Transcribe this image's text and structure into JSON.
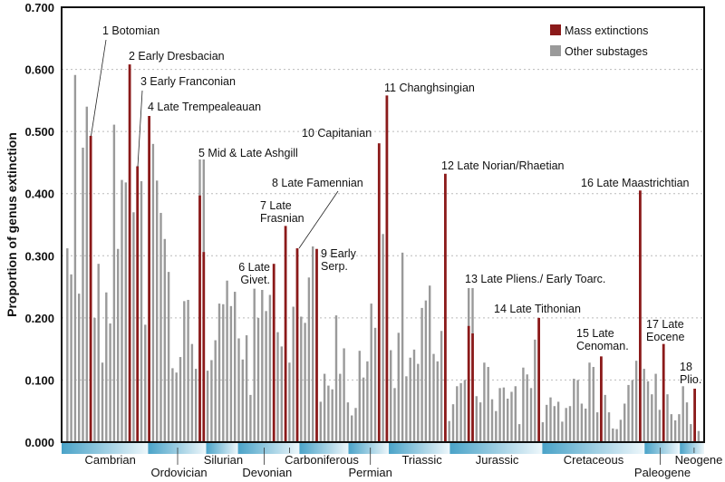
{
  "chart_data": {
    "type": "bar",
    "title": "",
    "xlabel": "",
    "ylabel": "Proportion of genus extinction",
    "ylim": [
      0,
      0.7
    ],
    "yticks": [
      "0.000",
      "0.100",
      "0.200",
      "0.300",
      "0.400",
      "0.500",
      "0.600",
      "0.700"
    ],
    "grid": "horizontal dotted",
    "legend_position": "top-right",
    "colors": {
      "mass": "#8b1a1a",
      "other": "#9a9a9a",
      "period_band": "#4aa3c8"
    },
    "series": [
      {
        "name": "Other substages",
        "values": [
          0.312,
          0.27,
          0.591,
          0.239,
          0.474,
          0.54,
          null,
          0.2,
          0.287,
          0.128,
          0.241,
          0.191,
          0.511,
          0.311,
          0.422,
          0.418,
          null,
          0.37,
          null,
          0.42,
          0.189,
          null,
          0.48,
          0.421,
          0.369,
          0.327,
          0.274,
          0.119,
          0.112,
          0.137,
          0.227,
          0.229,
          0.158,
          0.118,
          0.455,
          0.455,
          0.115,
          0.132,
          0.164,
          0.223,
          0.222,
          0.26,
          0.219,
          0.242,
          0.167,
          0.133,
          0.172,
          0.076,
          0.247,
          0.2,
          0.245,
          0.211,
          0.237,
          null,
          0.177,
          0.154,
          null,
          0.128,
          0.218,
          null,
          0.202,
          0.192,
          0.265,
          0.315,
          null,
          0.065,
          0.11,
          0.091,
          0.085,
          0.204,
          0.11,
          0.151,
          0.064,
          0.043,
          0.055,
          0.147,
          0.104,
          0.13,
          0.223,
          0.184,
          null,
          0.335,
          null,
          0.148,
          0.087,
          0.176,
          0.305,
          0.106,
          0.136,
          0.149,
          0.126,
          0.216,
          0.228,
          0.252,
          0.142,
          0.13,
          0.179,
          null,
          0.034,
          0.061,
          0.09,
          0.095,
          0.1,
          0.248,
          0.248,
          0.074,
          0.064,
          0.128,
          0.121,
          0.069,
          0.05,
          0.087,
          0.088,
          0.07,
          0.081,
          0.09,
          0.029,
          0.12,
          0.109,
          0.087,
          0.165,
          null,
          0.032,
          0.06,
          0.072,
          0.058,
          0.065,
          0.033,
          0.055,
          0.058,
          0.102,
          0.1,
          0.062,
          0.054,
          0.128,
          0.121,
          0.048,
          null,
          0.076,
          0.048,
          0.022,
          0.021,
          0.036,
          0.062,
          0.092,
          0.1,
          0.131,
          null,
          0.118,
          0.098,
          0.077,
          0.11,
          0.052,
          null,
          0.077,
          0.045,
          0.035,
          0.045,
          0.09,
          0.064,
          0.029,
          null,
          0.018
        ]
      },
      {
        "name": "Mass extinctions",
        "points": [
          {
            "index": 6,
            "value": 0.493,
            "label": [
              "1 Botomian"
            ]
          },
          {
            "index": 16,
            "value": 0.608,
            "label": [
              "2 Early Dresbacian"
            ]
          },
          {
            "index": 18,
            "value": 0.444,
            "label": [
              "3 Early Franconian"
            ]
          },
          {
            "index": 21,
            "value": 0.525,
            "label": [
              "4 Late Trempealeauan"
            ]
          },
          {
            "index": 34,
            "value": 0.397,
            "label": [
              "5 Mid & Late Ashgill"
            ]
          },
          {
            "index": 35,
            "value": 0.306,
            "label": []
          },
          {
            "index": 53,
            "value": 0.287,
            "label": [
              "6 Late",
              "Givet."
            ]
          },
          {
            "index": 56,
            "value": 0.348,
            "label": [
              "7 Late",
              "Frasnian"
            ]
          },
          {
            "index": 59,
            "value": 0.312,
            "label": [
              "8 Late Famennian"
            ]
          },
          {
            "index": 64,
            "value": 0.311,
            "label": [
              "9 Early",
              "Serp."
            ]
          },
          {
            "index": 80,
            "value": 0.481,
            "label": [
              "10 Capitanian"
            ]
          },
          {
            "index": 82,
            "value": 0.558,
            "label": [
              "11 Changhsingian"
            ]
          },
          {
            "index": 97,
            "value": 0.432,
            "label": [
              "12 Late Norian/Rhaetian"
            ]
          },
          {
            "index": 103,
            "value": 0.187,
            "label": [
              "13 Late Pliens./ Early Toarc."
            ]
          },
          {
            "index": 104,
            "value": 0.175,
            "label": []
          },
          {
            "index": 121,
            "value": 0.2,
            "label": [
              "14 Late Tithonian"
            ]
          },
          {
            "index": 137,
            "value": 0.138,
            "label": [
              "15 Late",
              "Cenoman."
            ]
          },
          {
            "index": 147,
            "value": 0.405,
            "label": [
              "16 Late Maastrichtian"
            ]
          },
          {
            "index": 153,
            "value": 0.158,
            "label": [
              "17 Late",
              "Eocene"
            ]
          },
          {
            "index": 161,
            "value": 0.086,
            "label": [
              "18",
              "Plio."
            ]
          }
        ]
      }
    ],
    "legend": [
      "Mass extinctions",
      "Other substages"
    ],
    "periods": [
      "Cambrian",
      "Ordovician",
      "Silurian",
      "Devonian",
      "Carboniferous",
      "Permian",
      "Triassic",
      "Jurassic",
      "Cretaceous",
      "Paleogene",
      "Neogene"
    ]
  }
}
